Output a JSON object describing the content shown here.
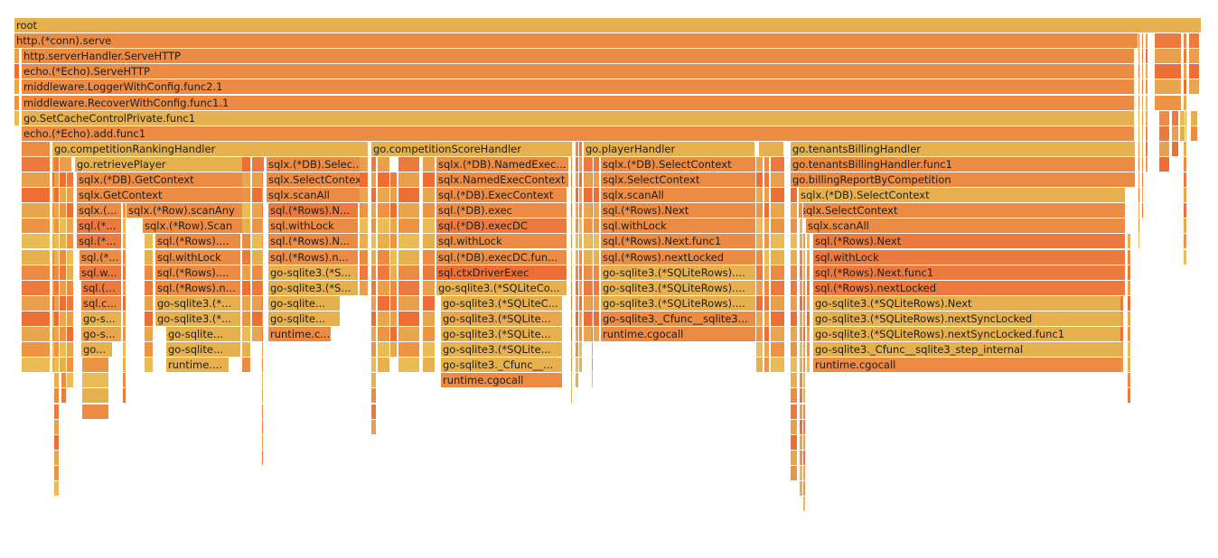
{
  "flamegraph": {
    "frames": [
      {
        "label": "root"
      },
      {
        "label": "http.(*conn).serve"
      },
      {
        "label": "http.serverHandler.ServeHTTP"
      },
      {
        "label": "echo.(*Echo).ServeHTTP"
      },
      {
        "label": "middleware.LoggerWithConfig.func2.1"
      },
      {
        "label": "middleware.RecoverWithConfig.func1.1"
      },
      {
        "label": "go.SetCacheControlPrivate.func1"
      },
      {
        "label": "echo.(*Echo).add.func1"
      },
      {
        "label": "go.competitionRankingHandler"
      },
      {
        "label": "go.retrievePlayer"
      },
      {
        "label": "sqlx.(*DB).GetContext"
      },
      {
        "label": "sqlx.GetContext"
      },
      {
        "label": "sqlx.(..."
      },
      {
        "label": "sql.(*..."
      },
      {
        "label": "sql.(*..."
      },
      {
        "label": "sql.(*..."
      },
      {
        "label": "sql.w..."
      },
      {
        "label": "sql.(..."
      },
      {
        "label": "sql.c..."
      },
      {
        "label": "go-s..."
      },
      {
        "label": "go-s..."
      },
      {
        "label": "go..."
      },
      {
        "label": "sqlx.(*Row).scanAny"
      },
      {
        "label": "sqlx.(*Row).Scan"
      },
      {
        "label": "sql.(*Rows)...."
      },
      {
        "label": "sql.withLock"
      },
      {
        "label": "sql.(*Rows)...."
      },
      {
        "label": "sql.(*Rows).n..."
      },
      {
        "label": "go-sqlite3.(*..."
      },
      {
        "label": "go-sqlite3.(*..."
      },
      {
        "label": "go-sqlite..."
      },
      {
        "label": "go-sqlite..."
      },
      {
        "label": "runtime...."
      },
      {
        "label": "sqlx.(*DB).Selec..."
      },
      {
        "label": "sqlx.SelectContext"
      },
      {
        "label": "sqlx.scanAll"
      },
      {
        "label": "sql.(*Rows).N..."
      },
      {
        "label": "sql.withLock"
      },
      {
        "label": "sql.(*Rows).N..."
      },
      {
        "label": "sql.(*Rows).n..."
      },
      {
        "label": "go-sqlite3.(*S..."
      },
      {
        "label": "go-sqlite3.(*S..."
      },
      {
        "label": "go-sqlite..."
      },
      {
        "label": "go-sqlite..."
      },
      {
        "label": "runtime.c..."
      },
      {
        "label": "go.competitionScoreHandler"
      },
      {
        "label": "sqlx.(*DB).NamedExec..."
      },
      {
        "label": "sqlx.NamedExecContext"
      },
      {
        "label": "sql.(*DB).ExecContext"
      },
      {
        "label": "sql.(*DB).exec"
      },
      {
        "label": "sql.(*DB).execDC"
      },
      {
        "label": "sql.withLock"
      },
      {
        "label": "sql.(*DB).execDC.fun..."
      },
      {
        "label": "sql.ctxDriverExec"
      },
      {
        "label": "go-sqlite3.(*SQLiteCo..."
      },
      {
        "label": "go-sqlite3.(*SQLiteC..."
      },
      {
        "label": "go-sqlite3.(*SQLite..."
      },
      {
        "label": "go-sqlite3.(*SQLite..."
      },
      {
        "label": "go-sqlite3.(*SQLite..."
      },
      {
        "label": "go-sqlite3._Cfunc__..."
      },
      {
        "label": "runtime.cgocall"
      },
      {
        "label": "go.playerHandler"
      },
      {
        "label": "sqlx.(*DB).SelectContext"
      },
      {
        "label": "sqlx.SelectContext"
      },
      {
        "label": "sqlx.scanAll"
      },
      {
        "label": "sql.(*Rows).Next"
      },
      {
        "label": "sql.withLock"
      },
      {
        "label": "sql.(*Rows).Next.func1"
      },
      {
        "label": "sql.(*Rows).nextLocked"
      },
      {
        "label": "go-sqlite3.(*SQLiteRows)...."
      },
      {
        "label": "go-sqlite3.(*SQLiteRows)...."
      },
      {
        "label": "go-sqlite3.(*SQLiteRows)...."
      },
      {
        "label": "go-sqlite3._Cfunc__sqlite3..."
      },
      {
        "label": "runtime.cgocall"
      },
      {
        "label": "go.tenantsBillingHandler"
      },
      {
        "label": "go.tenantsBillingHandler.func1"
      },
      {
        "label": "go.billingReportByCompetition"
      },
      {
        "label": "sqlx.(*DB).SelectContext"
      },
      {
        "label": "sqlx.SelectContext"
      },
      {
        "label": "sqlx.scanAll"
      },
      {
        "label": "sql.(*Rows).Next"
      },
      {
        "label": "sql.withLock"
      },
      {
        "label": "sql.(*Rows).Next.func1"
      },
      {
        "label": "sql.(*Rows).nextLocked"
      },
      {
        "label": "go-sqlite3.(*SQLiteRows).Next"
      },
      {
        "label": "go-sqlite3.(*SQLiteRows).nextSyncLocked"
      },
      {
        "label": "go-sqlite3.(*SQLiteRows).nextSyncLocked.func1"
      },
      {
        "label": "go-sqlite3._Cfunc__sqlite3_step_internal"
      },
      {
        "label": "runtime.cgocall"
      }
    ]
  }
}
